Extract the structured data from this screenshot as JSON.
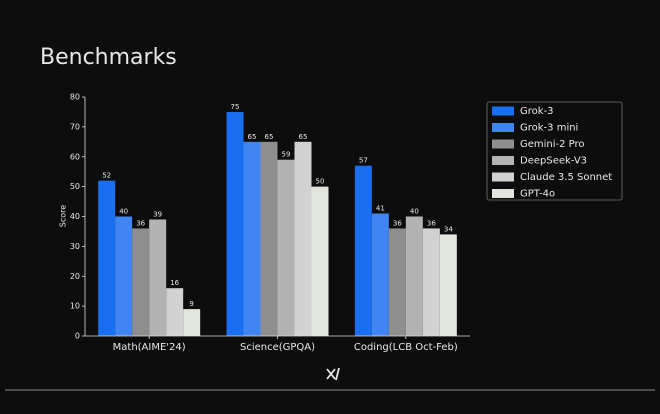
{
  "chart_data": {
    "type": "bar",
    "title": "Benchmarks",
    "ylabel": "Score",
    "categories": [
      "Math(AIME'24)",
      "Science(GPQA)",
      "Coding(LCB Oct-Feb)"
    ],
    "series": [
      {
        "name": "Grok-3",
        "color": "#1a6ef0",
        "values": [
          52,
          75,
          57
        ]
      },
      {
        "name": "Grok-3 mini",
        "color": "#3f86f2",
        "values": [
          40,
          65,
          41
        ]
      },
      {
        "name": "Gemini-2 Pro",
        "color": "#8e8e8e",
        "values": [
          36,
          65,
          36
        ]
      },
      {
        "name": "DeepSeek-V3",
        "color": "#b3b3b3",
        "values": [
          39,
          59,
          40
        ]
      },
      {
        "name": "Claude 3.5 Sonnet",
        "color": "#d2d2d2",
        "values": [
          16,
          65,
          36
        ]
      },
      {
        "name": "GPT-4o",
        "color": "#e2e5de",
        "values": [
          9,
          50,
          34
        ]
      }
    ],
    "ylim": [
      0,
      80
    ],
    "yticks": [
      0,
      10,
      20,
      30,
      40,
      50,
      60,
      70,
      80
    ]
  }
}
